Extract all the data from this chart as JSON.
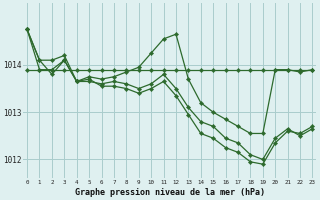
{
  "bg_color": "#dff0f0",
  "grid_color": "#aacccc",
  "line_color": "#2d6a2d",
  "title": "Graphe pression niveau de la mer (hPa)",
  "ylim": [
    1011.6,
    1015.3
  ],
  "xlim": [
    -0.3,
    23.3
  ],
  "yticks": [
    1012,
    1013,
    1014
  ],
  "xticks": [
    0,
    1,
    2,
    3,
    4,
    5,
    6,
    7,
    8,
    9,
    10,
    11,
    12,
    13,
    14,
    15,
    16,
    17,
    18,
    19,
    20,
    21,
    22,
    23
  ],
  "series_flat": {
    "x": [
      0,
      1,
      2,
      3,
      4,
      5,
      6,
      7,
      8,
      9,
      10,
      11,
      12,
      13,
      14,
      15,
      16,
      17,
      18,
      19,
      20,
      21,
      22,
      23
    ],
    "y": [
      1013.9,
      1013.9,
      1013.9,
      1013.9,
      1013.9,
      1013.9,
      1013.9,
      1013.9,
      1013.9,
      1013.9,
      1013.9,
      1013.9,
      1013.9,
      1013.9,
      1013.9,
      1013.9,
      1013.9,
      1013.9,
      1013.9,
      1013.9,
      1013.9,
      1013.9,
      1013.9,
      1013.9
    ]
  },
  "series_peak": {
    "x": [
      0,
      1,
      2,
      3,
      4,
      5,
      6,
      7,
      8,
      9,
      10,
      11,
      12,
      13,
      14,
      15,
      16,
      17,
      18,
      19,
      20,
      21,
      22,
      23
    ],
    "y": [
      1014.75,
      1014.1,
      1014.1,
      1014.2,
      1013.65,
      1013.75,
      1013.7,
      1013.75,
      1013.85,
      1013.95,
      1014.25,
      1014.55,
      1014.65,
      1013.7,
      1013.2,
      1013.0,
      1012.85,
      1012.7,
      1012.55,
      1012.55,
      1013.9,
      1013.9,
      1013.85,
      1013.9
    ]
  },
  "series_desc1": {
    "x": [
      0,
      1,
      2,
      3,
      4,
      5,
      6,
      7,
      8,
      9,
      10,
      11,
      12,
      13,
      14,
      15,
      16,
      17,
      18,
      19,
      20,
      21,
      22,
      23
    ],
    "y": [
      1014.75,
      1014.1,
      1013.8,
      1014.1,
      1013.65,
      1013.65,
      1013.6,
      1013.65,
      1013.6,
      1013.5,
      1013.6,
      1013.8,
      1013.5,
      1013.1,
      1012.8,
      1012.7,
      1012.45,
      1012.35,
      1012.1,
      1012.0,
      1012.45,
      1012.65,
      1012.5,
      1012.65
    ]
  },
  "series_desc2": {
    "x": [
      0,
      1,
      2,
      3,
      4,
      5,
      6,
      7,
      8,
      9,
      10,
      11,
      12,
      13,
      14,
      15,
      16,
      17,
      18,
      19,
      20,
      21,
      22,
      23
    ],
    "y": [
      1014.75,
      1013.9,
      1013.9,
      1014.1,
      1013.65,
      1013.7,
      1013.55,
      1013.55,
      1013.5,
      1013.4,
      1013.5,
      1013.65,
      1013.35,
      1012.95,
      1012.55,
      1012.45,
      1012.25,
      1012.15,
      1011.95,
      1011.9,
      1012.35,
      1012.6,
      1012.55,
      1012.7
    ]
  }
}
